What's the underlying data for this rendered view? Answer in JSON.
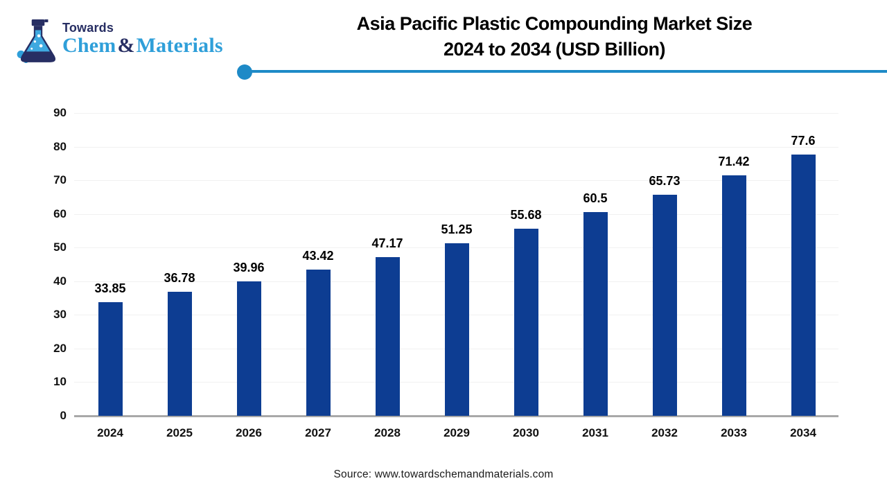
{
  "logo": {
    "towards": "Towards",
    "chem": "Chem",
    "ampersand": "&",
    "materials": "Materials",
    "navy_color": "#272E63",
    "blue_color": "#2F9FD9"
  },
  "header": {
    "title_line1": "Asia Pacific Plastic Compounding Market Size",
    "title_line2": "2024 to 2034 (USD Billion)",
    "divider_color": "#1E8AC7"
  },
  "chart_data": {
    "type": "bar",
    "title": "Asia Pacific Plastic Compounding Market Size 2024 to 2034 (USD Billion)",
    "categories": [
      "2024",
      "2025",
      "2026",
      "2027",
      "2028",
      "2029",
      "2030",
      "2031",
      "2032",
      "2033",
      "2034"
    ],
    "values": [
      33.85,
      36.78,
      39.96,
      43.42,
      47.17,
      51.25,
      55.68,
      60.5,
      65.73,
      71.42,
      77.6
    ],
    "value_labels": [
      "33.85",
      "36.78",
      "39.96",
      "43.42",
      "47.17",
      "51.25",
      "55.68",
      "60.5",
      "65.73",
      "71.42",
      "77.6"
    ],
    "xlabel": "",
    "ylabel": "",
    "ylim": [
      0,
      90
    ],
    "ytick_step": 10,
    "grid": true,
    "legend": "none",
    "bar_color": "#0D3D92",
    "gridline_color": "#F1F1F1",
    "axis_line_color": "#A8A8A8"
  },
  "footer": {
    "source": "Source: www.towardschemandmaterials.com"
  }
}
